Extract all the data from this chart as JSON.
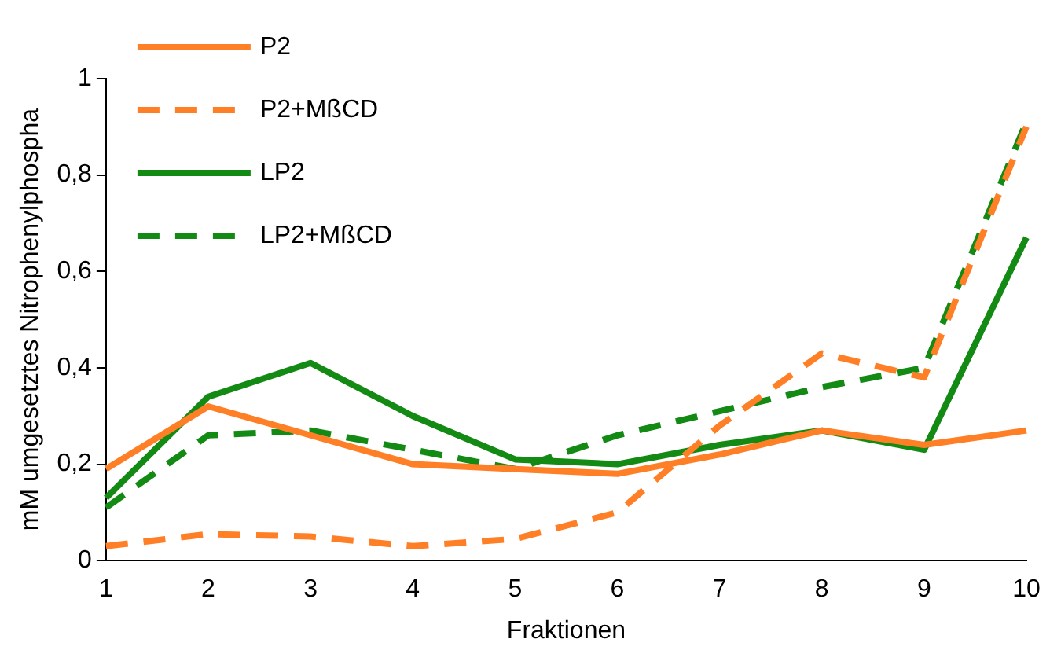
{
  "chart_data": {
    "type": "line",
    "xlabel": "Fraktionen",
    "ylabel": "mM umgesetztes Nitrophenylphospha",
    "categories": [
      "1",
      "2",
      "3",
      "4",
      "5",
      "6",
      "7",
      "8",
      "9",
      "10"
    ],
    "ylim": [
      0,
      1
    ],
    "yticks": [
      0,
      {
        "value": 0.2,
        "label": "0,2"
      },
      {
        "value": 0.4,
        "label": "0,4"
      },
      {
        "value": 0.6,
        "label": "0,6"
      },
      {
        "value": 0.8,
        "label": "0,8"
      },
      1
    ],
    "grid": false,
    "legend": "top left",
    "marker": "none",
    "series": [
      {
        "name": "P2",
        "color": "#ff7f27",
        "line_style": "solid",
        "values": [
          0.19,
          0.32,
          0.26,
          0.2,
          0.19,
          0.18,
          0.22,
          0.27,
          0.24,
          0.27
        ]
      },
      {
        "name": "P2+MßCD",
        "color": "#ff7f27",
        "line_style": "dashed",
        "values": [
          0.03,
          0.055,
          0.05,
          0.03,
          0.045,
          0.1,
          0.28,
          0.43,
          0.38,
          0.9
        ]
      },
      {
        "name": "LP2",
        "color": "#138a13",
        "line_style": "solid",
        "values": [
          0.13,
          0.34,
          0.41,
          0.3,
          0.21,
          0.2,
          0.24,
          0.27,
          0.23,
          0.67
        ]
      },
      {
        "name": "LP2+MßCD",
        "color": "#138a13",
        "line_style": "dashed",
        "values": [
          0.11,
          0.26,
          0.27,
          0.23,
          0.19,
          0.26,
          0.31,
          0.36,
          0.4,
          0.91
        ]
      }
    ]
  }
}
